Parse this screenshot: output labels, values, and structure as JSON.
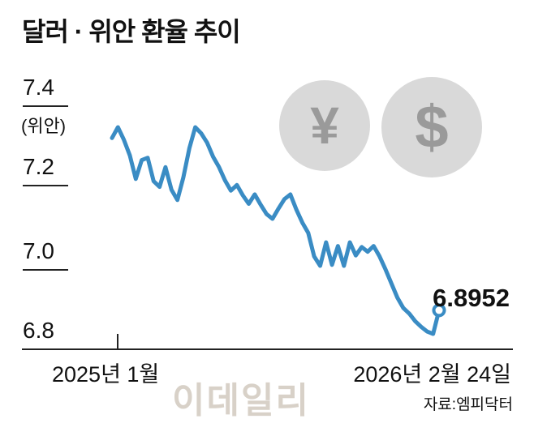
{
  "title": "달러 · 위안 환율 추이",
  "y_axis": {
    "unit": "(위안)",
    "ticks": [
      "7.4",
      "7.2",
      "7.0",
      "6.8"
    ]
  },
  "x_axis": {
    "left_label": "2025년 1월",
    "right_label": "2026년 2월 24일"
  },
  "end_label": "6.8952",
  "source": "자료:엠피닥터",
  "watermark": "이데일리",
  "icons": {
    "yuan_glyph": "¥",
    "dollar_glyph": "$"
  },
  "colors": {
    "line": "#3a8cc4",
    "marker_fill": "#ffffff",
    "badge_bg": "#d9d9d9",
    "badge_glyph": "#9a9a9a",
    "axis": "#222222",
    "watermark": "#d8d1c8"
  },
  "chart_data": {
    "type": "line",
    "title": "달러 · 위안 환율 추이",
    "ylabel": "(위안)",
    "ylim": [
      6.8,
      7.4
    ],
    "ytick_values": [
      7.4,
      7.2,
      7.0,
      6.8
    ],
    "x_range": [
      "2025년 1월",
      "2026년 2월 24일"
    ],
    "grid": false,
    "legend": "none",
    "series": [
      {
        "name": "달러·위안 환율",
        "values": [
          7.262,
          7.285,
          7.258,
          7.225,
          7.175,
          7.215,
          7.22,
          7.17,
          7.158,
          7.2,
          7.152,
          7.13,
          7.178,
          7.24,
          7.285,
          7.272,
          7.252,
          7.222,
          7.2,
          7.172,
          7.15,
          7.162,
          7.14,
          7.122,
          7.142,
          7.12,
          7.1,
          7.09,
          7.112,
          7.132,
          7.142,
          7.11,
          7.082,
          7.06,
          7.01,
          6.99,
          7.04,
          6.992,
          7.032,
          6.99,
          7.04,
          7.012,
          7.03,
          7.02,
          7.032,
          7.01,
          6.982,
          6.952,
          6.922,
          6.9,
          6.888,
          6.872,
          6.86,
          6.85,
          6.845,
          6.8952
        ]
      }
    ],
    "last_value": 6.8952,
    "last_value_label": "6.8952"
  }
}
